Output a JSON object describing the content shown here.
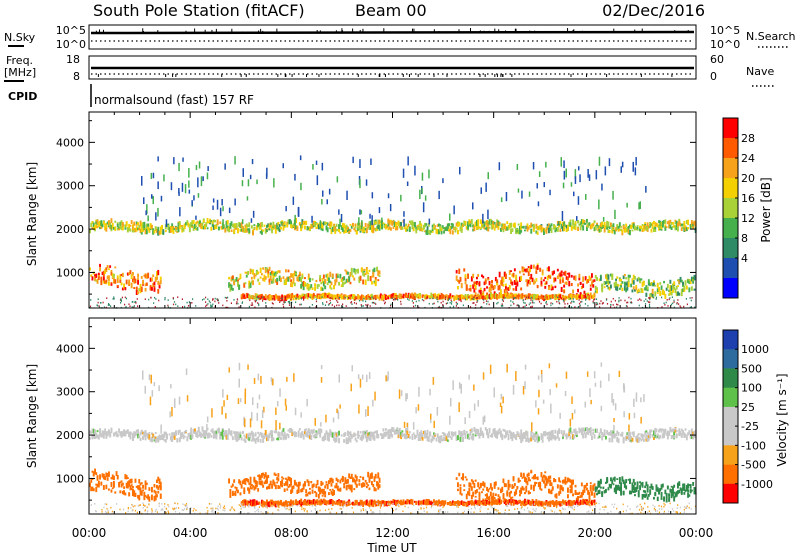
{
  "header": {
    "title": "South Pole Station (fitACF)",
    "beam": "Beam 00",
    "date": "02/Dec/2016"
  },
  "top_panels": {
    "nsky_label": "N.Sky",
    "nsky_ticks": [
      "10^5",
      "10^0"
    ],
    "nsearch_label": "N.Search",
    "nsearch_ticks": [
      "10^5",
      "10^0"
    ],
    "freq_label_1": "Freq.",
    "freq_label_2": "[MHz]",
    "freq_ticks": [
      "18",
      "8"
    ],
    "nave_label": "Nave",
    "nave_ticks": [
      "60",
      "0"
    ],
    "cpid_label": "CPID",
    "cpid_text": "normalsound (fast) 157 RF"
  },
  "chart_data": [
    {
      "type": "heatmap",
      "name": "power",
      "xlabel": "",
      "ylabel": "Slant Range [km]",
      "xlim": [
        0,
        24
      ],
      "ylim": [
        180,
        4700
      ],
      "yticks": [
        1000,
        2000,
        3000,
        4000
      ],
      "colorbar_label": "Power [dB]",
      "colorbar_ticks": [
        "28",
        "24",
        "20",
        "16",
        "12",
        "8",
        "4"
      ],
      "colorbar_colors": [
        "#0000ff",
        "#1e4fb0",
        "#2f8a66",
        "#45b04c",
        "#a8d238",
        "#f5d000",
        "#f7a21b",
        "#ff5a00",
        "#ff0000"
      ],
      "bands": [
        {
          "x": [
            0,
            24
          ],
          "range_center": 2050,
          "range_width": 200,
          "level": 0.55,
          "note_colors": [
            "#2f8a66",
            "#45b04c",
            "#1e4fb0"
          ]
        },
        {
          "x": [
            0,
            2.8
          ],
          "range_center": 850,
          "range_width": 450,
          "level": 0.8
        },
        {
          "x": [
            5.5,
            11.5
          ],
          "range_center": 850,
          "range_width": 350,
          "level": 0.6
        },
        {
          "x": [
            14.5,
            20
          ],
          "range_center": 800,
          "range_width": 500,
          "level": 0.85
        },
        {
          "x": [
            20,
            24
          ],
          "range_center": 700,
          "range_width": 350,
          "level": 0.45
        },
        {
          "x": [
            6,
            20
          ],
          "range_center": 440,
          "range_width": 60,
          "level": 0.75
        }
      ]
    },
    {
      "type": "heatmap",
      "name": "velocity",
      "xlabel": "Time UT",
      "ylabel": "Slant Range [km]",
      "xlim": [
        0,
        24
      ],
      "ylim": [
        180,
        4700
      ],
      "xticks": [
        "00:00",
        "04:00",
        "08:00",
        "12:00",
        "16:00",
        "20:00",
        "00:00"
      ],
      "yticks": [
        1000,
        2000,
        3000,
        4000
      ],
      "colorbar_label": "Velocity [m s⁻¹]",
      "colorbar_ticks": [
        "1000",
        "500",
        "100",
        "25",
        "-25",
        "-100",
        "-500",
        "-1000"
      ],
      "colorbar_colors": [
        "#1e3fae",
        "#2d6b9e",
        "#2f8a4a",
        "#5ec24a",
        "#c8c8c8",
        "#c8c8c8",
        "#f7a21b",
        "#ff7000",
        "#ff0000"
      ],
      "bands": [
        {
          "x": [
            0,
            24
          ],
          "range_center": 2000,
          "range_width": 200,
          "velocity": 0
        },
        {
          "x": [
            0,
            2.8
          ],
          "range_center": 850,
          "range_width": 450,
          "velocity": -300
        },
        {
          "x": [
            5.5,
            11.5
          ],
          "range_center": 850,
          "range_width": 350,
          "velocity": -200
        },
        {
          "x": [
            14.5,
            20
          ],
          "range_center": 800,
          "range_width": 500,
          "velocity": -250
        },
        {
          "x": [
            20,
            24
          ],
          "range_center": 750,
          "range_width": 350,
          "velocity": 250
        },
        {
          "x": [
            6,
            20
          ],
          "range_center": 440,
          "range_width": 60,
          "velocity": -400
        }
      ]
    }
  ]
}
